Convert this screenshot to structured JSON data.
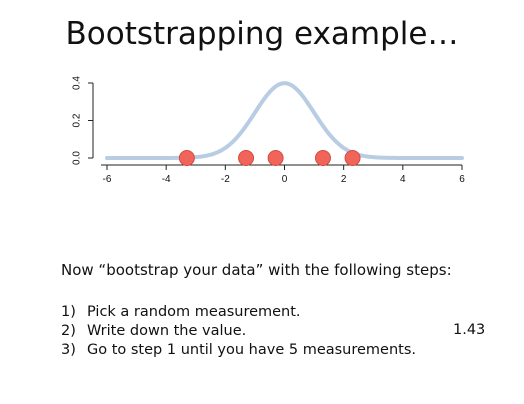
{
  "slide": {
    "title": "Bootstrapping example…",
    "instruction": "Now “bootstrap your data” with the following steps:",
    "steps": [
      {
        "number": "1)",
        "text": "Pick a random measurement."
      },
      {
        "number": "2)",
        "text": "Write down the value."
      },
      {
        "number": "3)",
        "text": "Go to step 1 until you have 5 measurements."
      }
    ],
    "value": "1.43"
  },
  "chart_data": {
    "type": "scatter",
    "title": "",
    "xlabel": "",
    "ylabel": "",
    "xlim": [
      -6.5,
      6.5
    ],
    "ylim": [
      0,
      0.42
    ],
    "x_ticks": [
      -6,
      -4,
      -2,
      0,
      2,
      4,
      6
    ],
    "x_tick_labels": [
      "-6",
      "-4",
      "-2",
      "0",
      "2",
      "4",
      "6"
    ],
    "y_ticks": [
      0.0,
      0.2,
      0.4
    ],
    "y_tick_labels": [
      "0.0",
      "0.2",
      "0.4"
    ],
    "curve": {
      "name": "standard normal density",
      "mean": 0,
      "sd": 1,
      "color": "#b8cde3"
    },
    "points": {
      "x": [
        -3.3,
        -1.3,
        -0.3,
        1.3,
        2.3
      ],
      "y": [
        0,
        0,
        0,
        0,
        0
      ],
      "color": "#f0645a"
    }
  }
}
